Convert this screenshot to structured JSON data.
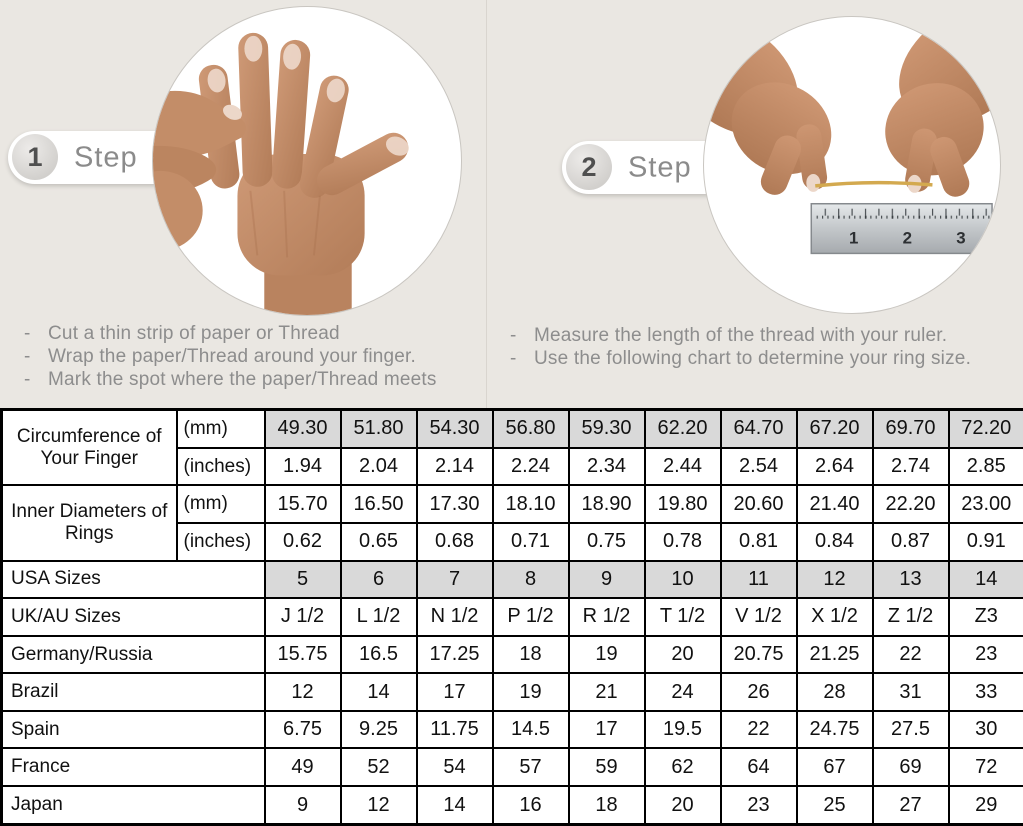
{
  "steps": [
    {
      "number": "1",
      "label": "Step",
      "photo": "hand-with-thread-around-finger",
      "instructions": [
        "Cut a thin strip of paper or Thread",
        "Wrap the paper/Thread around your finger.",
        "Mark the spot where the paper/Thread meets"
      ]
    },
    {
      "number": "2",
      "label": "Step",
      "photo": "hands-measuring-thread-with-ruler",
      "ruler_numbers": [
        "1",
        "2",
        "3"
      ],
      "instructions": [
        "Measure the length of the thread with your ruler.",
        "Use the following chart to determine your ring size."
      ]
    }
  ],
  "table": {
    "highlight_color": "#d9d9d9",
    "rows": [
      {
        "label": "Circumference of Your Finger",
        "labelRowspan": 2,
        "unit": "(mm)",
        "highlight": true,
        "values": [
          "49.30",
          "51.80",
          "54.30",
          "56.80",
          "59.30",
          "62.20",
          "64.70",
          "67.20",
          "69.70",
          "72.20"
        ]
      },
      {
        "unit": "(inches)",
        "values": [
          "1.94",
          "2.04",
          "2.14",
          "2.24",
          "2.34",
          "2.44",
          "2.54",
          "2.64",
          "2.74",
          "2.85"
        ]
      },
      {
        "label": "Inner Diameters of Rings",
        "labelRowspan": 2,
        "unit": "(mm)",
        "values": [
          "15.70",
          "16.50",
          "17.30",
          "18.10",
          "18.90",
          "19.80",
          "20.60",
          "21.40",
          "22.20",
          "23.00"
        ]
      },
      {
        "unit": "(inches)",
        "values": [
          "0.62",
          "0.65",
          "0.68",
          "0.71",
          "0.75",
          "0.78",
          "0.81",
          "0.84",
          "0.87",
          "0.91"
        ]
      },
      {
        "label": "USA Sizes",
        "highlight": true,
        "values": [
          "5",
          "6",
          "7",
          "8",
          "9",
          "10",
          "11",
          "12",
          "13",
          "14"
        ]
      },
      {
        "label": "UK/AU Sizes",
        "values": [
          "J 1/2",
          "L 1/2",
          "N 1/2",
          "P 1/2",
          "R 1/2",
          "T 1/2",
          "V 1/2",
          "X 1/2",
          "Z 1/2",
          "Z3"
        ]
      },
      {
        "label": "Germany/Russia",
        "values": [
          "15.75",
          "16.5",
          "17.25",
          "18",
          "19",
          "20",
          "20.75",
          "21.25",
          "22",
          "23"
        ]
      },
      {
        "label": "Brazil",
        "values": [
          "12",
          "14",
          "17",
          "19",
          "21",
          "24",
          "26",
          "28",
          "31",
          "33"
        ]
      },
      {
        "label": "Spain",
        "values": [
          "6.75",
          "9.25",
          "11.75",
          "14.5",
          "17",
          "19.5",
          "22",
          "24.75",
          "27.5",
          "30"
        ]
      },
      {
        "label": "France",
        "values": [
          "49",
          "52",
          "54",
          "57",
          "59",
          "62",
          "64",
          "67",
          "69",
          "72"
        ]
      },
      {
        "label": "Japan",
        "values": [
          "9",
          "12",
          "14",
          "16",
          "18",
          "20",
          "23",
          "25",
          "27",
          "29"
        ]
      }
    ]
  }
}
